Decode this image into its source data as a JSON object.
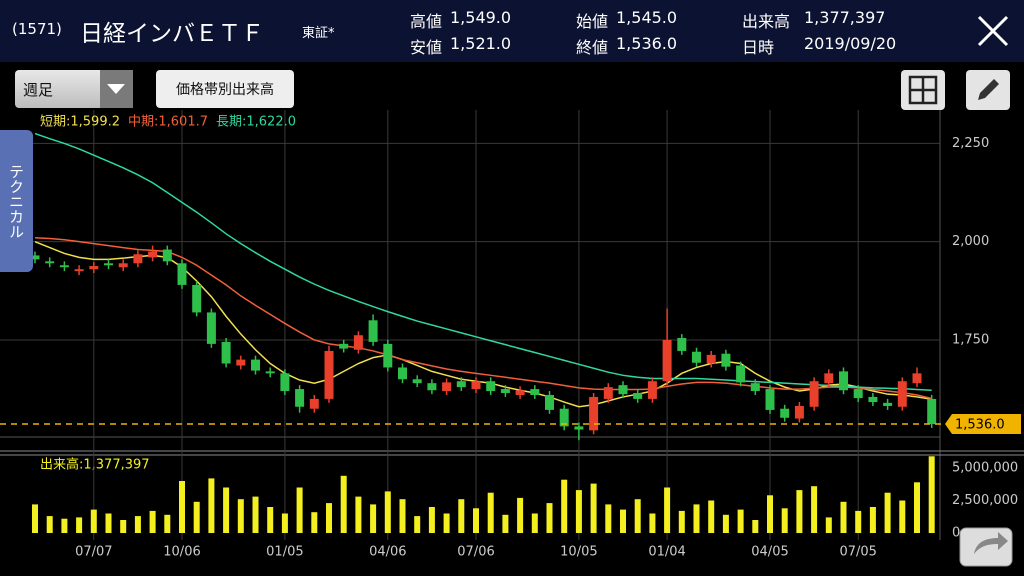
{
  "header": {
    "code": "(1571)",
    "name": "日経インバＥＴＦ",
    "market": "東証*",
    "stats": [
      {
        "label": "高値",
        "value": "1,549.0"
      },
      {
        "label": "安値",
        "value": "1,521.0"
      },
      {
        "label": "始値",
        "value": "1,545.0"
      },
      {
        "label": "終値",
        "value": "1,536.0"
      },
      {
        "label": "出来高",
        "value": "1,377,397"
      },
      {
        "label": "日時",
        "value": "2019/09/20"
      }
    ]
  },
  "toolbar": {
    "period": "週足",
    "volume_profile": "価格帯別出来高",
    "side_tab": "テクニカル"
  },
  "chart_data": [
    {
      "type": "candlestick",
      "up_color": "#e8402a",
      "down_color": "#2ec04a",
      "categories": [
        null,
        null,
        null,
        null,
        "07/07",
        null,
        null,
        null,
        null,
        null,
        "10/06",
        null,
        null,
        null,
        null,
        null,
        null,
        "01/05",
        null,
        null,
        null,
        null,
        null,
        null,
        "04/06",
        null,
        null,
        null,
        null,
        null,
        "07/06",
        null,
        null,
        null,
        null,
        null,
        null,
        "10/05",
        null,
        null,
        null,
        null,
        null,
        "01/04",
        null,
        null,
        null,
        null,
        null,
        null,
        "04/05",
        null,
        null,
        null,
        null,
        null,
        "07/05",
        null,
        null,
        null,
        null,
        null
      ],
      "open": [
        1965,
        1950,
        1940,
        1925,
        1930,
        1945,
        1935,
        1945,
        1960,
        1980,
        1945,
        1890,
        1820,
        1745,
        1685,
        1700,
        1670,
        1665,
        1625,
        1575,
        1600,
        1740,
        1725,
        1800,
        1740,
        1680,
        1650,
        1640,
        1620,
        1645,
        1625,
        1645,
        1625,
        1610,
        1625,
        1610,
        1575,
        1530,
        1520,
        1600,
        1635,
        1615,
        1600,
        1645,
        1755,
        1720,
        1690,
        1715,
        1685,
        1640,
        1625,
        1575,
        1550,
        1580,
        1640,
        1670,
        1625,
        1605,
        1590,
        1580,
        1640,
        1600
      ],
      "high": [
        1975,
        1960,
        1950,
        1940,
        1948,
        1955,
        1955,
        1978,
        1990,
        1990,
        1955,
        1900,
        1830,
        1755,
        1710,
        1710,
        1680,
        1675,
        1635,
        1610,
        1735,
        1750,
        1772,
        1815,
        1750,
        1690,
        1660,
        1650,
        1652,
        1655,
        1655,
        1655,
        1635,
        1632,
        1635,
        1620,
        1585,
        1540,
        1615,
        1640,
        1645,
        1625,
        1655,
        1830,
        1765,
        1730,
        1722,
        1725,
        1695,
        1650,
        1635,
        1585,
        1592,
        1655,
        1675,
        1680,
        1635,
        1615,
        1600,
        1655,
        1680,
        1610
      ],
      "low": [
        1945,
        1935,
        1925,
        1915,
        1920,
        1930,
        1925,
        1935,
        1950,
        1940,
        1880,
        1810,
        1730,
        1680,
        1675,
        1662,
        1655,
        1610,
        1565,
        1565,
        1590,
        1718,
        1715,
        1735,
        1670,
        1640,
        1630,
        1612,
        1610,
        1620,
        1615,
        1610,
        1605,
        1600,
        1600,
        1562,
        1520,
        1495,
        1510,
        1590,
        1602,
        1590,
        1590,
        1635,
        1712,
        1682,
        1680,
        1672,
        1632,
        1610,
        1562,
        1542,
        1540,
        1570,
        1630,
        1612,
        1592,
        1582,
        1572,
        1570,
        1630,
        1526
      ],
      "close": [
        1955,
        1945,
        1935,
        1930,
        1938,
        1940,
        1945,
        1968,
        1975,
        1950,
        1890,
        1820,
        1740,
        1690,
        1700,
        1672,
        1665,
        1620,
        1580,
        1600,
        1722,
        1728,
        1762,
        1745,
        1680,
        1650,
        1640,
        1622,
        1642,
        1630,
        1645,
        1620,
        1615,
        1622,
        1610,
        1572,
        1530,
        1522,
        1605,
        1630,
        1612,
        1600,
        1645,
        1750,
        1722,
        1692,
        1712,
        1682,
        1642,
        1620,
        1572,
        1552,
        1582,
        1645,
        1665,
        1622,
        1602,
        1592,
        1582,
        1645,
        1665,
        1536
      ],
      "series": [
        {
          "name": "短期:1,599.2",
          "color": "#f0e050",
          "values": [
            2000,
            1985,
            1970,
            1960,
            1955,
            1955,
            1958,
            1962,
            1965,
            1960,
            1935,
            1900,
            1860,
            1810,
            1765,
            1725,
            1690,
            1665,
            1648,
            1640,
            1650,
            1670,
            1690,
            1705,
            1712,
            1700,
            1685,
            1670,
            1660,
            1650,
            1645,
            1640,
            1630,
            1622,
            1615,
            1605,
            1592,
            1580,
            1585,
            1595,
            1605,
            1612,
            1620,
            1640,
            1665,
            1680,
            1690,
            1695,
            1690,
            1665,
            1645,
            1630,
            1620,
            1625,
            1635,
            1638,
            1630,
            1620,
            1612,
            1610,
            1605,
            1599
          ]
        },
        {
          "name": "中期:1,601.7",
          "color": "#f0603a",
          "values": [
            2010,
            2008,
            2005,
            2000,
            1995,
            1990,
            1985,
            1980,
            1978,
            1975,
            1960,
            1940,
            1915,
            1890,
            1862,
            1838,
            1815,
            1792,
            1770,
            1750,
            1740,
            1735,
            1730,
            1722,
            1712,
            1700,
            1692,
            1684,
            1676,
            1670,
            1665,
            1660,
            1655,
            1650,
            1645,
            1640,
            1634,
            1628,
            1625,
            1624,
            1624,
            1624,
            1625,
            1632,
            1638,
            1642,
            1642,
            1640,
            1636,
            1632,
            1628,
            1625,
            1625,
            1627,
            1630,
            1630,
            1628,
            1624,
            1620,
            1616,
            1610,
            1601
          ]
        },
        {
          "name": "長期:1,622.0",
          "color": "#30d8a0",
          "values": [
            2275,
            2262,
            2250,
            2236,
            2220,
            2204,
            2188,
            2170,
            2150,
            2125,
            2100,
            2075,
            2048,
            2020,
            1995,
            1972,
            1950,
            1930,
            1910,
            1892,
            1876,
            1862,
            1848,
            1835,
            1822,
            1810,
            1798,
            1788,
            1778,
            1768,
            1758,
            1748,
            1738,
            1728,
            1718,
            1708,
            1698,
            1688,
            1678,
            1668,
            1660,
            1655,
            1652,
            1652,
            1652,
            1652,
            1650,
            1648,
            1646,
            1644,
            1642,
            1640,
            1638,
            1636,
            1634,
            1632,
            1630,
            1628,
            1627,
            1626,
            1624,
            1622
          ]
        }
      ],
      "ylim": [
        1470,
        2335
      ],
      "yticks": [
        {
          "value": 2250,
          "label": "2,250"
        },
        {
          "value": 2000,
          "label": "2,000"
        },
        {
          "value": 1750,
          "label": "1,750"
        }
      ],
      "price_line": {
        "value": 1536,
        "label": "1,536.0",
        "color": "#f0b400"
      },
      "grid": true
    },
    {
      "type": "bar",
      "title": "出来高:1,377,397",
      "color": "#f4f020",
      "values": [
        2200000,
        1300000,
        1100000,
        1200000,
        1800000,
        1500000,
        1000000,
        1300000,
        1700000,
        1400000,
        4000000,
        2400000,
        4200000,
        3500000,
        2600000,
        2800000,
        2000000,
        1500000,
        3500000,
        1600000,
        2300000,
        4400000,
        2800000,
        2200000,
        3200000,
        2600000,
        1300000,
        2000000,
        1500000,
        2600000,
        1900000,
        3100000,
        1400000,
        2700000,
        1500000,
        2300000,
        4100000,
        3300000,
        3800000,
        2200000,
        1800000,
        2600000,
        1500000,
        3500000,
        1700000,
        2200000,
        2500000,
        1400000,
        1800000,
        1000000,
        2900000,
        1900000,
        3300000,
        3600000,
        1200000,
        2400000,
        1700000,
        2000000,
        3100000,
        2500000,
        3900000,
        5900000
      ],
      "ylim": [
        0,
        6000000
      ],
      "yticks": [
        {
          "value": 5000000,
          "label": "5,000,000"
        },
        {
          "value": 2500000,
          "label": "2,500,000"
        },
        0
      ]
    }
  ]
}
